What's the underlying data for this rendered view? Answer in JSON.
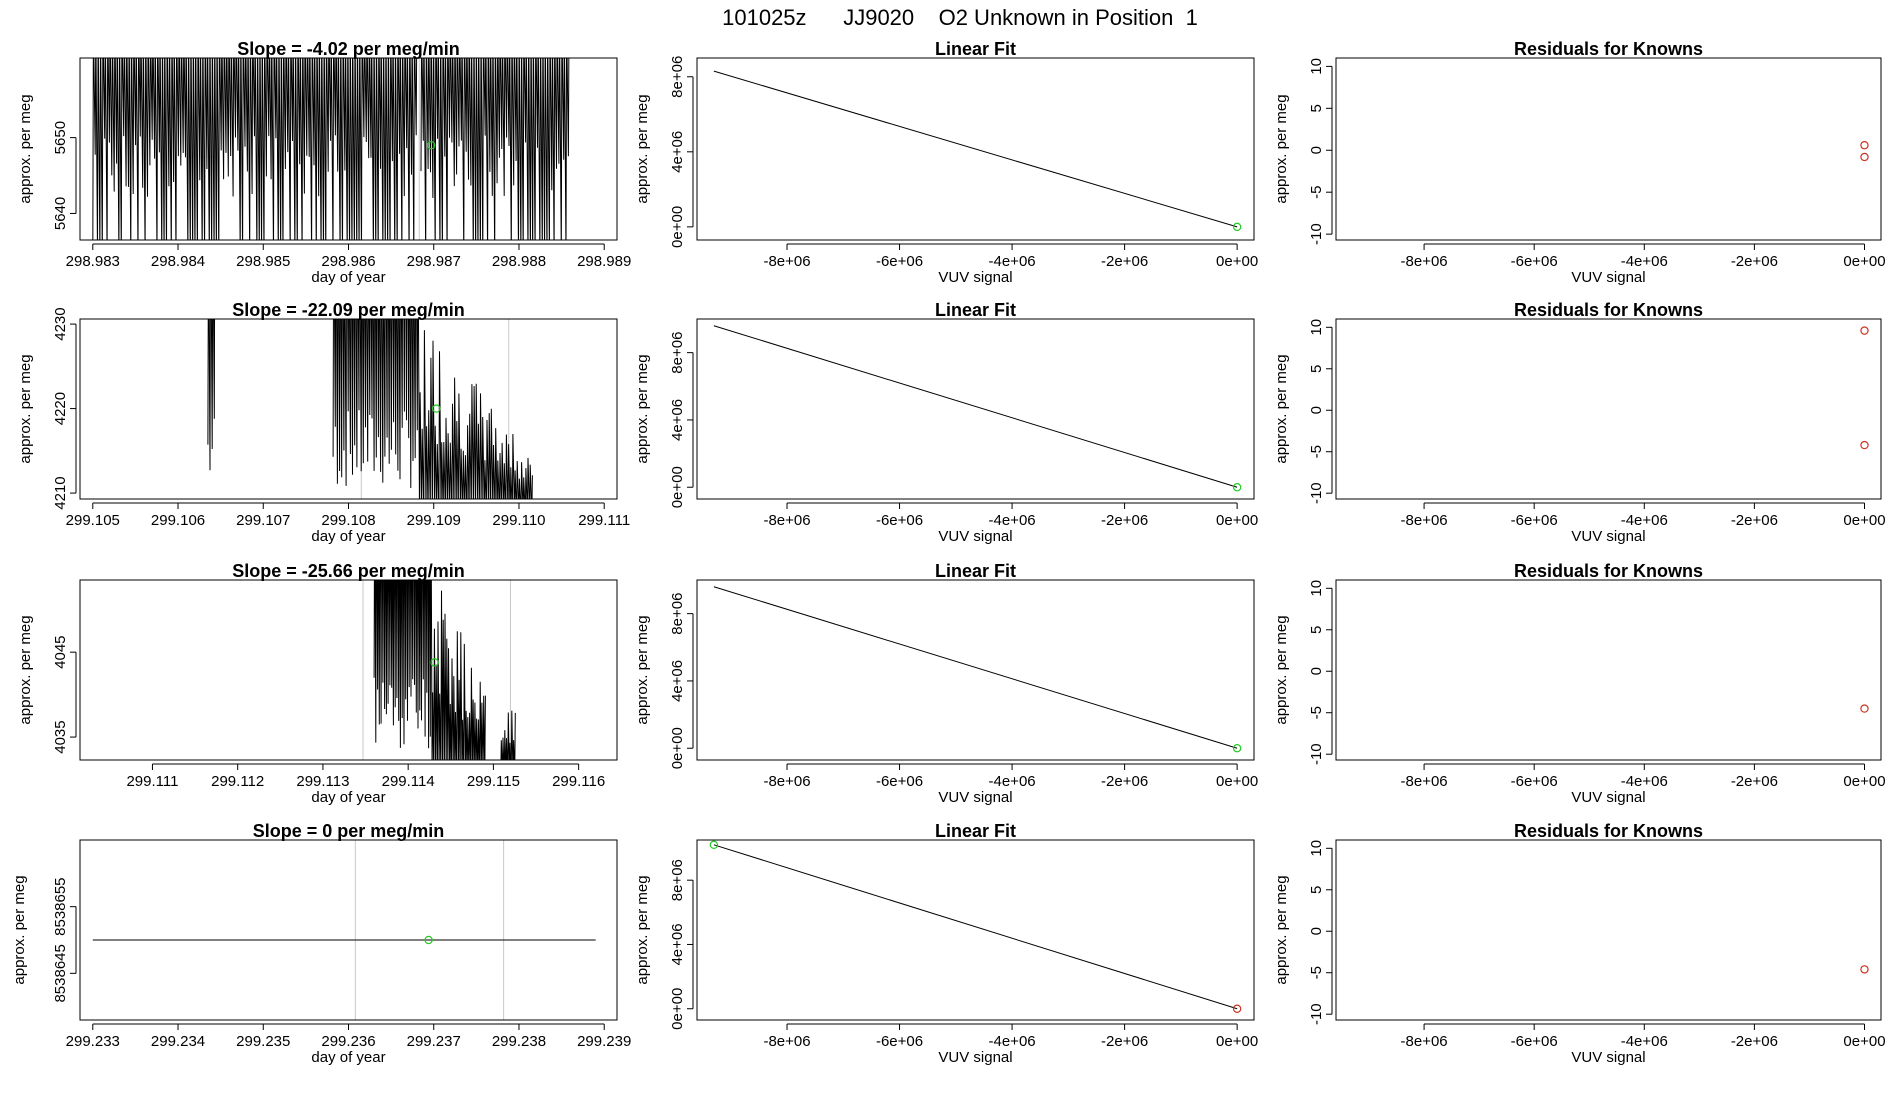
{
  "figure_title": "101025z      JJ9020    O2 Unknown in Position  1",
  "colors": {
    "line": "#000000",
    "unknown_point": "#22cc22",
    "known_point": "#cc3322",
    "grid": "#c8c8c8",
    "frame": "#000000"
  },
  "chart_data": [
    {
      "id": "r1-timeseries",
      "type": "line",
      "title": "Slope =  -4.02  per meg/min",
      "xlabel": "day of year",
      "ylabel": "approx. per meg",
      "xlim": [
        298.98285,
        298.98915
      ],
      "ylim": [
        5636.5,
        5660.5
      ],
      "xticks": [
        298.983,
        298.984,
        298.985,
        298.986,
        298.987,
        298.988,
        298.989
      ],
      "xtick_labels": [
        "298.983",
        "298.984",
        "298.985",
        "298.986",
        "298.987",
        "298.988",
        "298.989"
      ],
      "yticks": [
        5640,
        5650
      ],
      "ytick_labels": [
        "5640",
        "5650"
      ],
      "vlines": [
        298.98683
      ],
      "trace": {
        "x_start": 298.983,
        "x_end": 298.98858,
        "lo": 5641,
        "hi": 5660.5,
        "n": 200,
        "bottom": 5636.5,
        "gap_from": 298.98682,
        "gap_to": 298.98685,
        "seed": 3
      },
      "points": [
        {
          "x": 298.98697,
          "y": 5649,
          "kind": "unknown"
        }
      ]
    },
    {
      "id": "r1-linearfit",
      "type": "line",
      "title": "Linear Fit",
      "xlabel": "VUV signal",
      "ylabel": "approx. per meg",
      "xlim": [
        -9600000,
        300000
      ],
      "ylim": [
        -700000,
        9000000
      ],
      "xticks": [
        -8000000,
        -6000000,
        -4000000,
        -2000000,
        0
      ],
      "xtick_labels": [
        "-8e+06",
        "-6e+06",
        "-4e+06",
        "-2e+06",
        "0e+00"
      ],
      "yticks": [
        0,
        4000000,
        8000000
      ],
      "ytick_labels": [
        "0e+00",
        "4e+06",
        "8e+06"
      ],
      "fit_line": {
        "x": [
          -9300000,
          0
        ],
        "y": [
          8300000,
          0
        ]
      },
      "points": [
        {
          "x": 0,
          "y": 0,
          "kind": "unknown"
        }
      ]
    },
    {
      "id": "r1-residuals",
      "type": "scatter",
      "title": "Residuals for Knowns",
      "xlabel": "VUV signal",
      "ylabel": "approx. per meg",
      "xlim": [
        -9600000,
        300000
      ],
      "ylim": [
        -10.7,
        11
      ],
      "xticks": [
        -8000000,
        -6000000,
        -4000000,
        -2000000,
        0
      ],
      "xtick_labels": [
        "-8e+06",
        "-6e+06",
        "-4e+06",
        "-2e+06",
        "0e+00"
      ],
      "yticks": [
        -10,
        -5,
        0,
        5,
        10
      ],
      "ytick_labels": [
        "-10",
        "-5",
        "0",
        "5",
        "10"
      ],
      "points": [
        {
          "x": 0,
          "y": 0.6,
          "kind": "known"
        },
        {
          "x": 0,
          "y": -0.8,
          "kind": "known"
        }
      ]
    },
    {
      "id": "r2-timeseries",
      "type": "line",
      "title": "Slope =  -22.09  per meg/min",
      "xlabel": "day of year",
      "ylabel": "approx. per meg",
      "xlim": [
        299.10485,
        299.11115
      ],
      "ylim": [
        4209.3,
        4230.6
      ],
      "xticks": [
        299.105,
        299.106,
        299.107,
        299.108,
        299.109,
        299.11,
        299.111
      ],
      "xtick_labels": [
        "299.105",
        "299.106",
        "299.107",
        "299.108",
        "299.109",
        "299.110",
        "299.111"
      ],
      "yticks": [
        4210,
        4220,
        4230
      ],
      "ytick_labels": [
        "4210",
        "4220",
        "4230"
      ],
      "vlines": [
        299.10815,
        299.10988
      ],
      "trace": {
        "x_start": 299.10635,
        "x_end": 299.11015,
        "lo": 4209.3,
        "hi": 4230.6,
        "n": 150,
        "bottom": 4209.3,
        "gap_from": 299.10645,
        "gap_to": 299.1078,
        "seed": 7,
        "envelope": "decay2"
      },
      "points": [
        {
          "x": 299.10903,
          "y": 4220,
          "kind": "unknown"
        }
      ]
    },
    {
      "id": "r2-linearfit",
      "type": "line",
      "title": "Linear Fit",
      "xlabel": "VUV signal",
      "ylabel": "approx. per meg",
      "xlim": [
        -9600000,
        300000
      ],
      "ylim": [
        -700000,
        10000000
      ],
      "xticks": [
        -8000000,
        -6000000,
        -4000000,
        -2000000,
        0
      ],
      "xtick_labels": [
        "-8e+06",
        "-6e+06",
        "-4e+06",
        "-2e+06",
        "0e+00"
      ],
      "yticks": [
        0,
        4000000,
        8000000
      ],
      "ytick_labels": [
        "0e+00",
        "4e+06",
        "8e+06"
      ],
      "fit_line": {
        "x": [
          -9300000,
          0
        ],
        "y": [
          9600000,
          0
        ]
      },
      "points": [
        {
          "x": 0,
          "y": 0,
          "kind": "unknown"
        }
      ]
    },
    {
      "id": "r2-residuals",
      "type": "scatter",
      "title": "Residuals for Knowns",
      "xlabel": "VUV signal",
      "ylabel": "approx. per meg",
      "xlim": [
        -9600000,
        300000
      ],
      "ylim": [
        -10.7,
        11
      ],
      "xticks": [
        -8000000,
        -6000000,
        -4000000,
        -2000000,
        0
      ],
      "xtick_labels": [
        "-8e+06",
        "-6e+06",
        "-4e+06",
        "-2e+06",
        "0e+00"
      ],
      "yticks": [
        -10,
        -5,
        0,
        5,
        10
      ],
      "ytick_labels": [
        "-10",
        "-5",
        "0",
        "5",
        "10"
      ],
      "points": [
        {
          "x": 0,
          "y": 9.6,
          "kind": "known"
        },
        {
          "x": 0,
          "y": -4.2,
          "kind": "known"
        }
      ]
    },
    {
      "id": "r3-timeseries",
      "type": "line",
      "title": "Slope =  -25.66  per meg/min",
      "xlabel": "day of year",
      "ylabel": "approx. per meg",
      "xlim": [
        299.11015,
        299.11645
      ],
      "ylim": [
        4032.3,
        4053.5
      ],
      "xticks": [
        299.111,
        299.112,
        299.113,
        299.114,
        299.115,
        299.116
      ],
      "xtick_labels": [
        "299.111",
        "299.112",
        "299.113",
        "299.114",
        "299.115",
        "299.116"
      ],
      "yticks": [
        4035,
        4045
      ],
      "ytick_labels": [
        "4035",
        "4045"
      ],
      "vlines": [
        299.11347,
        299.1152
      ],
      "trace": {
        "x_start": 299.1136,
        "x_end": 299.11525,
        "lo": 4032.3,
        "hi": 4053.5,
        "n": 80,
        "bottom": 4032.3,
        "gap_from": 299.1149,
        "gap_to": 299.11508,
        "seed": 11,
        "envelope": "decay3"
      },
      "points": [
        {
          "x": 299.11431,
          "y": 4043.8,
          "kind": "unknown"
        }
      ]
    },
    {
      "id": "r3-linearfit",
      "type": "line",
      "title": "Linear Fit",
      "xlabel": "VUV signal",
      "ylabel": "approx. per meg",
      "xlim": [
        -9600000,
        300000
      ],
      "ylim": [
        -700000,
        10000000
      ],
      "xticks": [
        -8000000,
        -6000000,
        -4000000,
        -2000000,
        0
      ],
      "xtick_labels": [
        "-8e+06",
        "-6e+06",
        "-4e+06",
        "-2e+06",
        "0e+00"
      ],
      "yticks": [
        0,
        4000000,
        8000000
      ],
      "ytick_labels": [
        "0e+00",
        "4e+06",
        "8e+06"
      ],
      "fit_line": {
        "x": [
          -9300000,
          0
        ],
        "y": [
          9600000,
          0
        ]
      },
      "points": [
        {
          "x": 0,
          "y": 0,
          "kind": "unknown"
        }
      ]
    },
    {
      "id": "r3-residuals",
      "type": "scatter",
      "title": "Residuals for Knowns",
      "xlabel": "VUV signal",
      "ylabel": "approx. per meg",
      "xlim": [
        -9600000,
        300000
      ],
      "ylim": [
        -10.7,
        11
      ],
      "xticks": [
        -8000000,
        -6000000,
        -4000000,
        -2000000,
        0
      ],
      "xtick_labels": [
        "-8e+06",
        "-6e+06",
        "-4e+06",
        "-2e+06",
        "0e+00"
      ],
      "yticks": [
        -10,
        -5,
        0,
        5,
        10
      ],
      "ytick_labels": [
        "-10",
        "-5",
        "0",
        "5",
        "10"
      ],
      "points": [
        {
          "x": 0,
          "y": -4.5,
          "kind": "known"
        }
      ]
    },
    {
      "id": "r4-timeseries",
      "type": "line",
      "title": "Slope =  0  per meg/min",
      "xlabel": "day of year",
      "ylabel": "approx. per meg",
      "xlim": [
        299.23285,
        299.23915
      ],
      "ylim": [
        8538638,
        8538665
      ],
      "xticks": [
        299.233,
        299.234,
        299.235,
        299.236,
        299.237,
        299.238,
        299.239
      ],
      "xtick_labels": [
        "299.233",
        "299.234",
        "299.235",
        "299.236",
        "299.237",
        "299.238",
        "299.239"
      ],
      "yticks": [
        8538645,
        8538655
      ],
      "ytick_labels": [
        "8538645",
        "8538655"
      ],
      "vlines": [
        299.23608,
        299.23782
      ],
      "flat_line": {
        "x": [
          299.233,
          299.2389
        ],
        "y": 8538650
      },
      "points": [
        {
          "x": 299.23694,
          "y": 8538650,
          "kind": "unknown"
        }
      ]
    },
    {
      "id": "r4-linearfit",
      "type": "line",
      "title": "Linear Fit",
      "xlabel": "VUV signal",
      "ylabel": "approx. per meg",
      "xlim": [
        -9600000,
        300000
      ],
      "ylim": [
        -700000,
        10500000
      ],
      "xticks": [
        -8000000,
        -6000000,
        -4000000,
        -2000000,
        0
      ],
      "xtick_labels": [
        "-8e+06",
        "-6e+06",
        "-4e+06",
        "-2e+06",
        "0e+00"
      ],
      "yticks": [
        0,
        4000000,
        8000000
      ],
      "ytick_labels": [
        "0e+00",
        "4e+06",
        "8e+06"
      ],
      "fit_line": {
        "x": [
          -9300000,
          0
        ],
        "y": [
          10200000,
          0
        ]
      },
      "points": [
        {
          "x": -9300000,
          "y": 10200000,
          "kind": "unknown"
        },
        {
          "x": 0,
          "y": 0,
          "kind": "known"
        }
      ]
    },
    {
      "id": "r4-residuals",
      "type": "scatter",
      "title": "Residuals for Knowns",
      "xlabel": "VUV signal",
      "ylabel": "approx. per meg",
      "xlim": [
        -9600000,
        300000
      ],
      "ylim": [
        -10.7,
        11
      ],
      "xticks": [
        -8000000,
        -6000000,
        -4000000,
        -2000000,
        0
      ],
      "xtick_labels": [
        "-8e+06",
        "-6e+06",
        "-4e+06",
        "-2e+06",
        "0e+00"
      ],
      "yticks": [
        -10,
        -5,
        0,
        5,
        10
      ],
      "ytick_labels": [
        "-10",
        "-5",
        "0",
        "5",
        "10"
      ],
      "points": [
        {
          "x": 0,
          "y": -4.6,
          "kind": "known"
        }
      ]
    }
  ]
}
